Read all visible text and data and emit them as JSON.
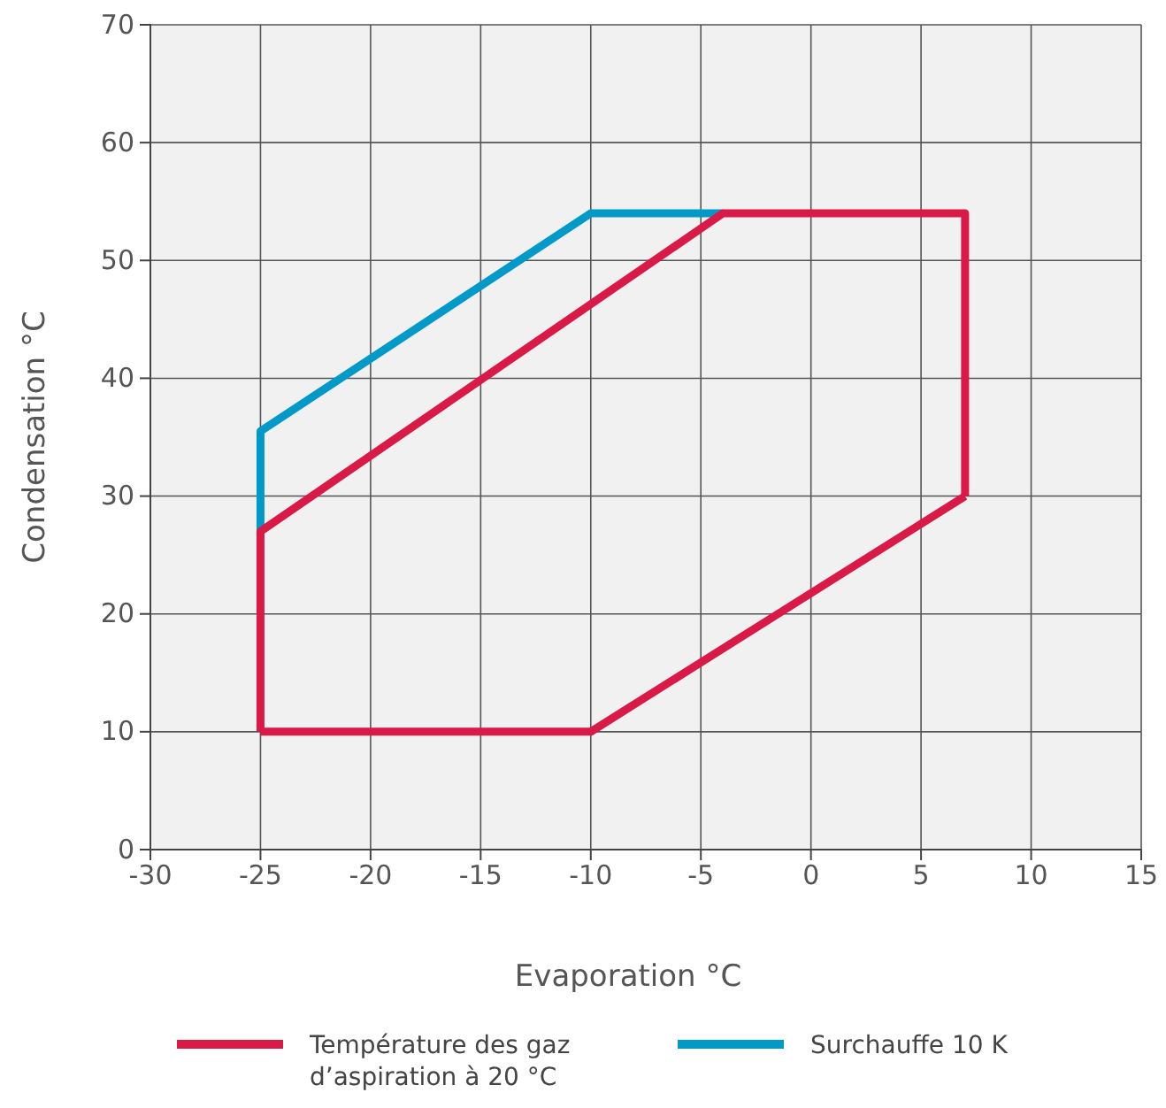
{
  "chart_data": {
    "type": "line",
    "xlabel": "Evaporation °C",
    "ylabel": "Condensation °C",
    "xlim": [
      -30,
      15
    ],
    "xticks": [
      -30,
      -25,
      -20,
      -15,
      -10,
      -5,
      0,
      5,
      10,
      15
    ],
    "ylim": [
      0,
      70
    ],
    "yticks": [
      0,
      10,
      20,
      30,
      40,
      50,
      60,
      70
    ],
    "grid": true,
    "legend": "bottom",
    "marker": "none",
    "line_style": "solid",
    "series": [
      {
        "name": "Surchauffe 10 K",
        "color": "#0099c8",
        "x": [
          -25,
          -25,
          -10,
          -4
        ],
        "values": [
          27,
          35.5,
          54,
          54
        ]
      },
      {
        "color": "#d91a47",
        "x": [
          -25,
          -10,
          7
        ],
        "values": [
          10,
          10,
          30
        ]
      },
      {
        "name": "Température des gaz d’aspiration à 20 °C",
        "color": "#d91a47",
        "x": [
          -25,
          -25,
          -4,
          7,
          7
        ],
        "values": [
          10,
          27,
          54,
          54,
          30
        ]
      }
    ]
  }
}
